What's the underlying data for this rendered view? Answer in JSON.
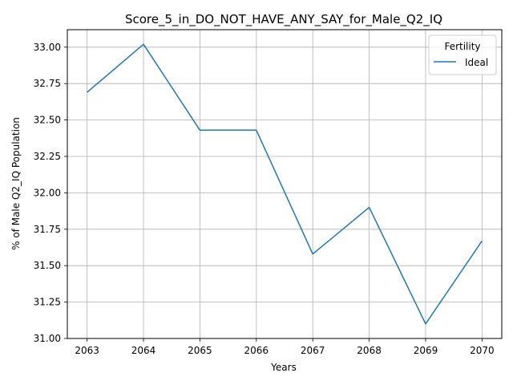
{
  "chart_data": {
    "type": "line",
    "title": "Score_5_in_DO_NOT_HAVE_ANY_SAY_for_Male_Q2_IQ",
    "xlabel": "Years",
    "ylabel": "% of Male Q2_IQ Population",
    "x": [
      2063,
      2064,
      2065,
      2066,
      2067,
      2068,
      2069,
      2070
    ],
    "xlim": [
      2062.65,
      2070.35
    ],
    "ylim": [
      31.0,
      33.12
    ],
    "x_ticks": [
      "2063",
      "2064",
      "2065",
      "2066",
      "2067",
      "2068",
      "2069",
      "2070"
    ],
    "y_ticks": [
      "31.00",
      "31.25",
      "31.50",
      "31.75",
      "32.00",
      "32.25",
      "32.50",
      "32.75",
      "33.00"
    ],
    "y_tick_values": [
      31.0,
      31.25,
      31.5,
      31.75,
      32.0,
      32.25,
      32.5,
      32.75,
      33.0
    ],
    "grid": true,
    "legend_placement": "top-right",
    "legend_title": "Fertility",
    "series": [
      {
        "name": "Ideal",
        "color": "#1f77b4",
        "values": [
          32.69,
          33.02,
          32.43,
          32.43,
          31.58,
          31.9,
          31.1,
          31.67
        ]
      }
    ]
  }
}
